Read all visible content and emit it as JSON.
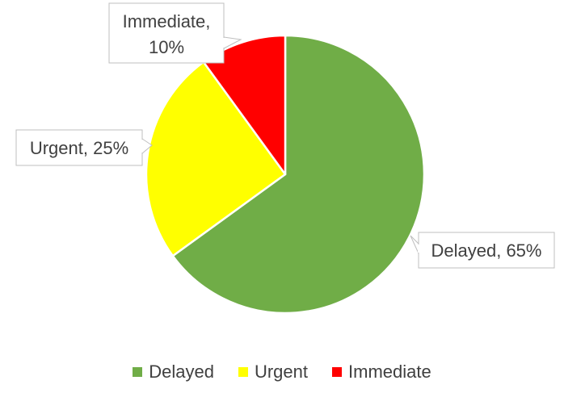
{
  "chart_data": {
    "type": "pie",
    "title": "",
    "categories": [
      "Delayed",
      "Urgent",
      "Immediate"
    ],
    "values": [
      65,
      25,
      10
    ],
    "colors": [
      "#70AD47",
      "#FFFF00",
      "#FF0000"
    ],
    "data_labels": [
      "Delayed, 65%",
      "Urgent, 25%",
      "Immediate, 10%"
    ],
    "legend": {
      "position": "bottom",
      "items": [
        {
          "label": "Delayed",
          "color": "#70AD47"
        },
        {
          "label": "Urgent",
          "color": "#FFFF00"
        },
        {
          "label": "Immediate",
          "color": "#FF0000"
        }
      ]
    }
  }
}
